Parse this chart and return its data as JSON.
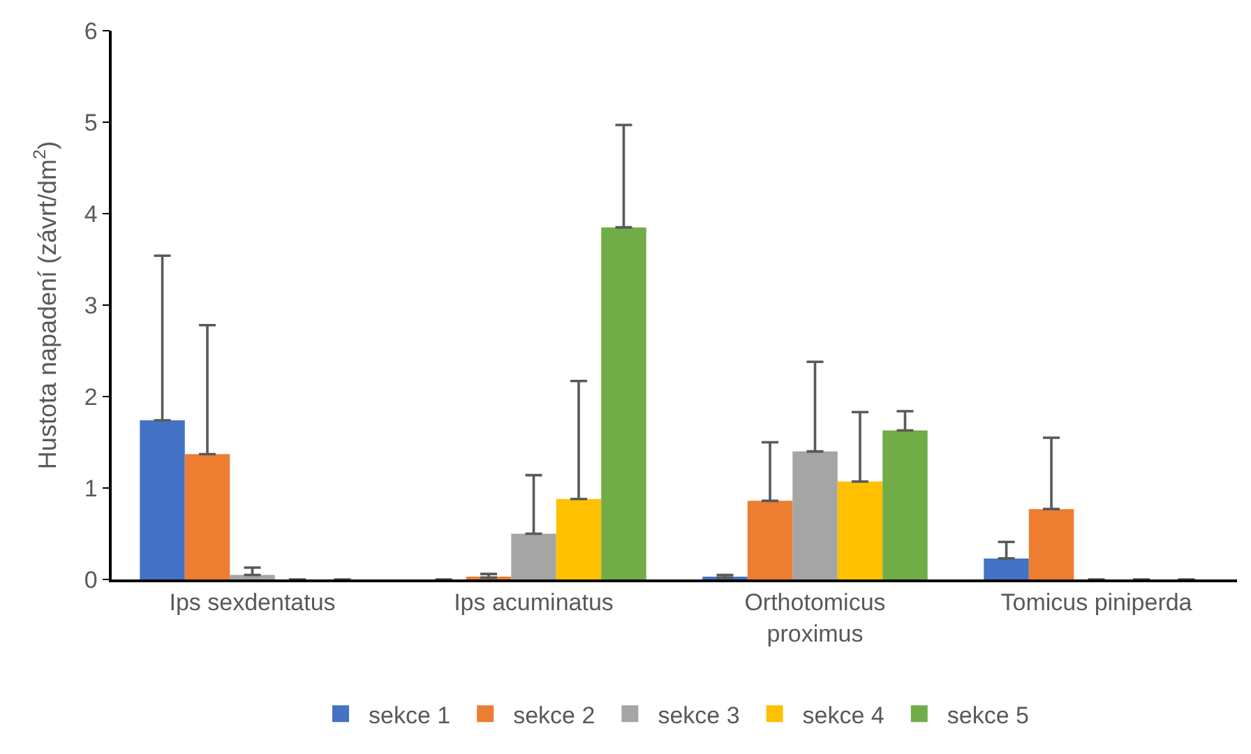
{
  "chart_data": {
    "type": "bar",
    "ylabel": "Hustota napadení (závrt/dm$^{2}$)",
    "categories": [
      "Ips sexdentatus",
      "Ips acuminatus",
      "Orthotomicus proximus",
      "Tomicus piniperda"
    ],
    "series": [
      {
        "name": "sekce 1",
        "color": "#4472c4",
        "values": [
          1.74,
          0,
          0.02,
          0.23
        ],
        "errors": [
          [
            1.74,
            3.54
          ],
          null,
          [
            0.02,
            0.05
          ],
          [
            0.23,
            0.41
          ]
        ]
      },
      {
        "name": "sekce 2",
        "color": "#ed7d31",
        "values": [
          1.37,
          0.02,
          0.86,
          0.77
        ],
        "errors": [
          [
            1.37,
            2.78
          ],
          [
            0.02,
            0.06
          ],
          [
            0.86,
            1.5
          ],
          [
            0.77,
            1.55
          ]
        ]
      },
      {
        "name": "sekce 3",
        "color": "#a5a5a5",
        "values": [
          0.05,
          0.5,
          1.4,
          0
        ],
        "errors": [
          [
            0.05,
            0.13
          ],
          [
            0.5,
            1.14
          ],
          [
            1.4,
            2.38
          ],
          null
        ]
      },
      {
        "name": "sekce 4",
        "color": "#ffc000",
        "values": [
          0,
          0.88,
          1.07,
          0
        ],
        "errors": [
          null,
          [
            0.88,
            2.17
          ],
          [
            1.07,
            1.83
          ],
          null
        ]
      },
      {
        "name": "sekce 5",
        "color": "#70ad47",
        "values": [
          0,
          3.85,
          1.63,
          0
        ],
        "errors": [
          null,
          [
            3.85,
            4.97
          ],
          [
            1.63,
            1.84
          ],
          null
        ]
      }
    ],
    "ylim": [
      0,
      6
    ],
    "yticks": [
      0,
      1,
      2,
      3,
      4,
      5,
      6
    ],
    "grid": false,
    "legend": "bottom"
  }
}
